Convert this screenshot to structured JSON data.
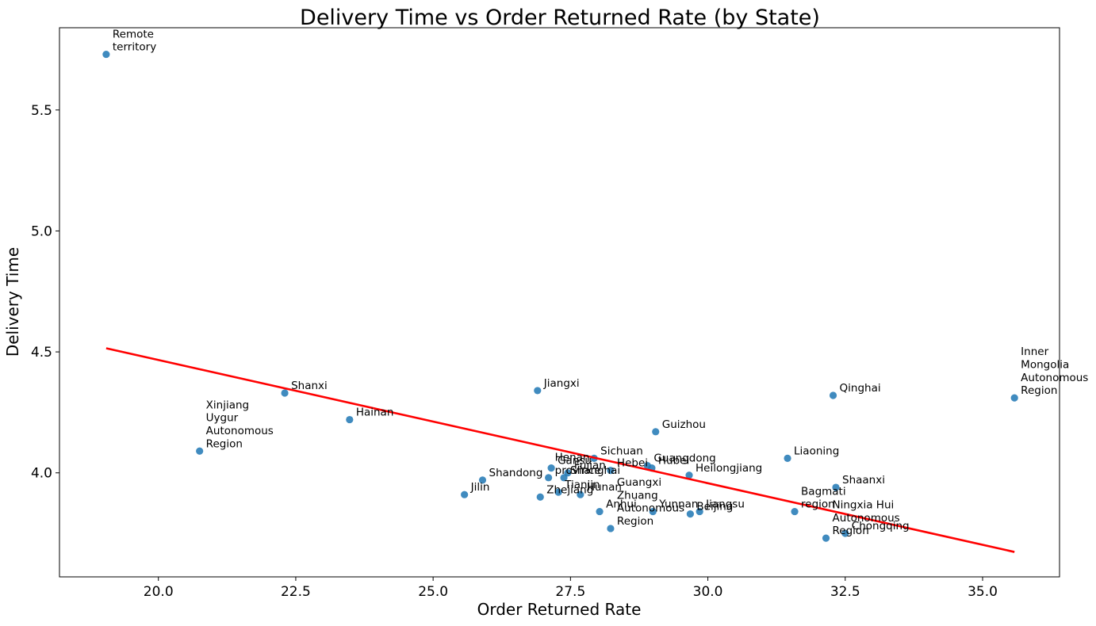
{
  "chart_data": {
    "type": "scatter",
    "title": "Delivery Time vs Order Returned Rate (by State)",
    "xlabel": "Order Returned Rate",
    "ylabel": "Delivery Time",
    "xlim": [
      18.2,
      36.4
    ],
    "ylim": [
      3.57,
      5.84
    ],
    "xticks": [
      20.0,
      22.5,
      25.0,
      27.5,
      30.0,
      32.5,
      35.0
    ],
    "xtick_labels": [
      "20.0",
      "22.5",
      "25.0",
      "27.5",
      "30.0",
      "32.5",
      "35.0"
    ],
    "yticks": [
      4.0,
      4.5,
      5.0,
      5.5
    ],
    "ytick_labels": [
      "4.0",
      "4.5",
      "5.0",
      "5.5"
    ],
    "grid": false,
    "point_color": "#1f77b4",
    "trend_color": "#ff0000",
    "trendline": {
      "x": [
        19.05,
        35.58
      ],
      "y": [
        4.515,
        3.673
      ]
    },
    "points": [
      {
        "label": "Remote\nterritory",
        "x": 19.05,
        "y": 5.73
      },
      {
        "label": "Xinjiang\nUygur\nAutonomous\nRegion",
        "x": 20.75,
        "y": 4.09
      },
      {
        "label": "Shanxi",
        "x": 22.3,
        "y": 4.33
      },
      {
        "label": "Hainan",
        "x": 23.48,
        "y": 4.22
      },
      {
        "label": "Jilin",
        "x": 25.57,
        "y": 3.91
      },
      {
        "label": "Shandong",
        "x": 25.9,
        "y": 3.97
      },
      {
        "label": "Jiangxi",
        "x": 26.9,
        "y": 4.34
      },
      {
        "label": "Zhejiang",
        "x": 26.95,
        "y": 3.9
      },
      {
        "label": "Henan\nprovince",
        "x": 27.1,
        "y": 3.98
      },
      {
        "label": "Gansu",
        "x": 27.15,
        "y": 4.02
      },
      {
        "label": "Tianjin",
        "x": 27.28,
        "y": 3.92
      },
      {
        "label": "Shanghai",
        "x": 27.38,
        "y": 3.98
      },
      {
        "label": "Fujian",
        "x": 27.45,
        "y": 4.0
      },
      {
        "label": "Hunan",
        "x": 27.68,
        "y": 3.91
      },
      {
        "label": "Sichuan",
        "x": 27.93,
        "y": 4.06
      },
      {
        "label": "Anhui",
        "x": 28.03,
        "y": 3.84
      },
      {
        "label": "Guangxi\nZhuang\nAutonomous\nRegion",
        "x": 28.23,
        "y": 3.77
      },
      {
        "label": "Hebei",
        "x": 28.23,
        "y": 4.01
      },
      {
        "label": "Guangdong",
        "x": 28.9,
        "y": 4.03
      },
      {
        "label": "Hubei",
        "x": 28.98,
        "y": 4.02
      },
      {
        "label": "Yunnan",
        "x": 29.0,
        "y": 3.84
      },
      {
        "label": "Guizhou",
        "x": 29.05,
        "y": 4.17
      },
      {
        "label": "Heilongjiang",
        "x": 29.66,
        "y": 3.99
      },
      {
        "label": "Beijing",
        "x": 29.68,
        "y": 3.83
      },
      {
        "label": "Jiangsu",
        "x": 29.85,
        "y": 3.84
      },
      {
        "label": "Liaoning",
        "x": 31.45,
        "y": 4.06
      },
      {
        "label": "Bagmati\nregion",
        "x": 31.58,
        "y": 3.84
      },
      {
        "label": "Ningxia Hui\nAutonomous\nRegion",
        "x": 32.15,
        "y": 3.73
      },
      {
        "label": "Qinghai",
        "x": 32.28,
        "y": 4.32
      },
      {
        "label": "Shaanxi",
        "x": 32.33,
        "y": 3.94
      },
      {
        "label": "Chongqing",
        "x": 32.5,
        "y": 3.75
      },
      {
        "label": "Inner\nMongolia\nAutonomous\nRegion",
        "x": 35.58,
        "y": 4.31
      }
    ]
  }
}
